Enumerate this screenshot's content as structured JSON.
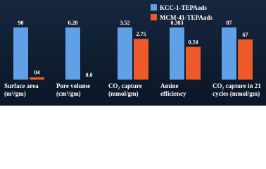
{
  "chart_data": {
    "type": "bar",
    "categories": [
      "Surface area\n(m²/gm)",
      "Pore volume\n(cm³/gm)",
      "CO₂ capture\n(mmol/gm)",
      "Amine\nefficiency",
      "CO₂ capture in 21\ncycles (mmol/gm)"
    ],
    "series": [
      {
        "name": "KCC-1-TEPAads",
        "color": "#5fa0e6",
        "values": [
          90,
          0.28,
          3.52,
          0.383,
          87
        ]
      },
      {
        "name": "MCM-41-TEPAads",
        "color": "#ec5a2a",
        "values": [
          4,
          0,
          2.75,
          0.24,
          67
        ],
        "value_labels": [
          "04",
          "0.0",
          "2.75",
          "0.24",
          "67"
        ]
      }
    ],
    "legend": "top-right"
  }
}
